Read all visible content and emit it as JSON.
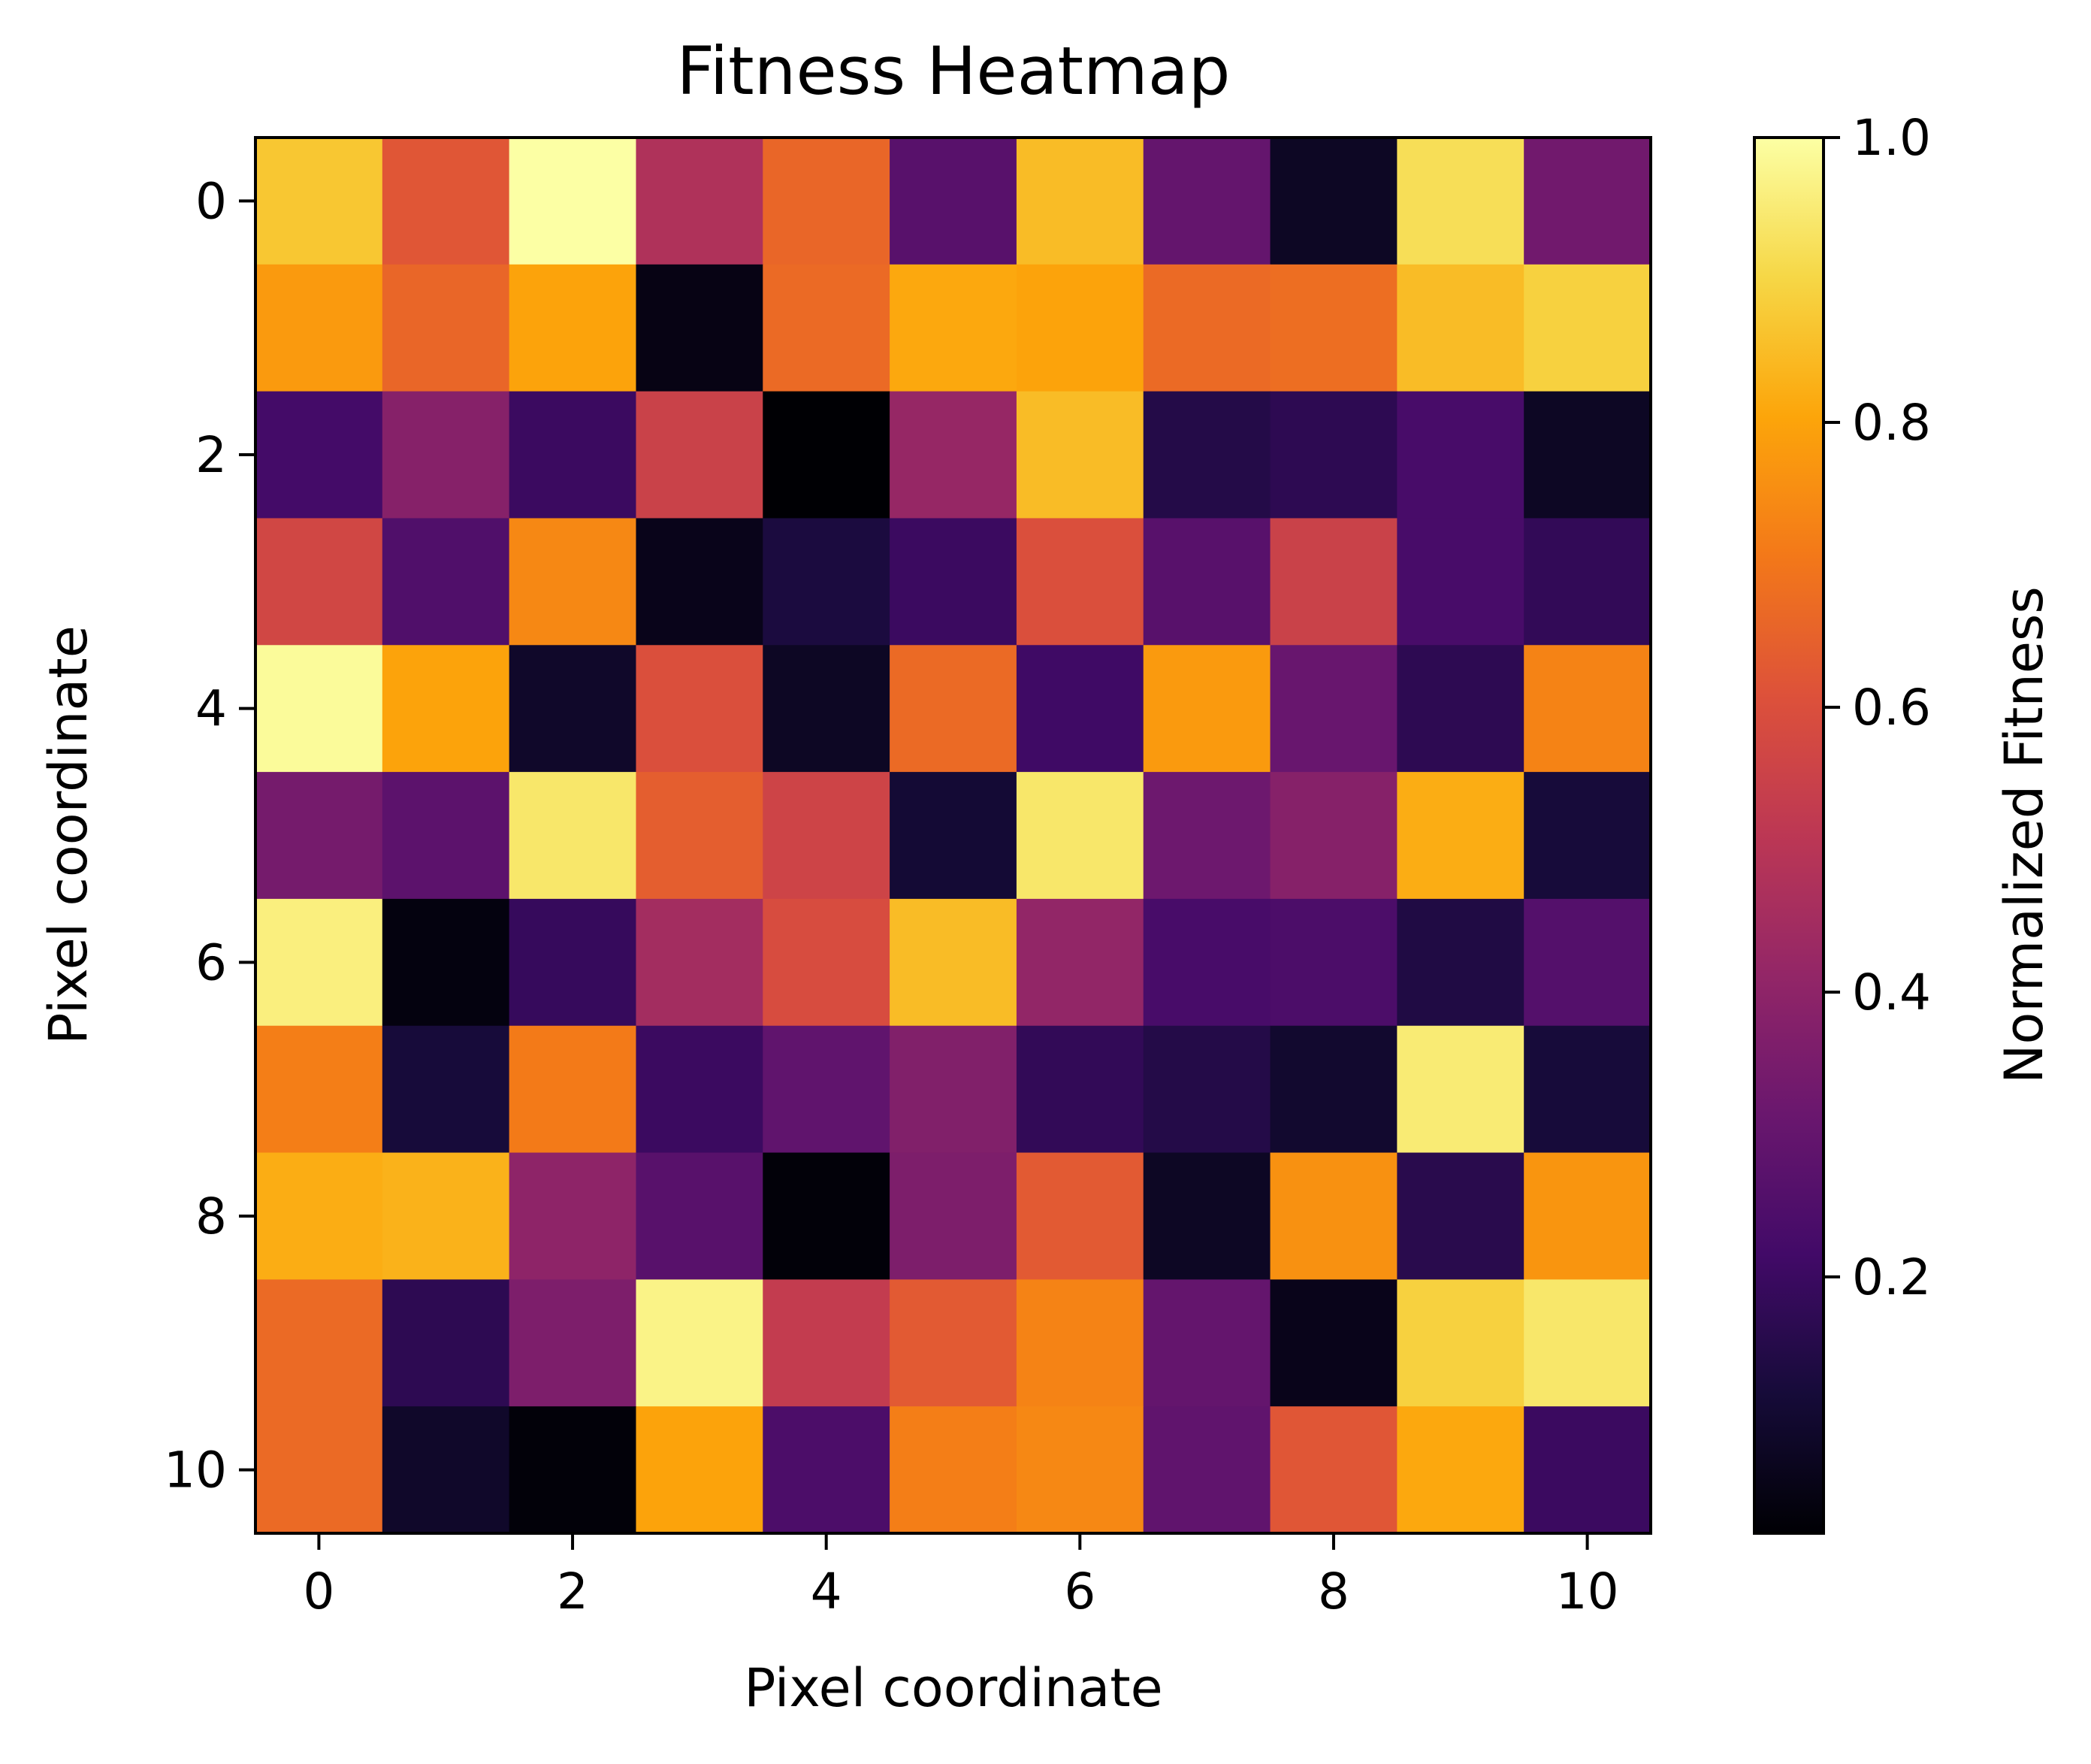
{
  "chart_data": {
    "type": "heatmap",
    "title": "Fitness Heatmap",
    "xlabel": "Pixel coordinate",
    "ylabel": "Pixel coordinate",
    "x_ticks": [
      0,
      2,
      4,
      6,
      8,
      10
    ],
    "y_ticks": [
      0,
      2,
      4,
      6,
      8,
      10
    ],
    "y_inverted": true,
    "colormap": "inferno",
    "colorbar": {
      "label": "Normalized Fitness",
      "range": [
        0.02,
        1.0
      ],
      "ticks": [
        0.2,
        0.4,
        0.6,
        0.8,
        1.0
      ],
      "tick_labels": [
        "0.2",
        "0.4",
        "0.6",
        "0.8",
        "1.0"
      ]
    },
    "values": [
      [
        0.87,
        0.62,
        1.0,
        0.48,
        0.66,
        0.27,
        0.85,
        0.3,
        0.08,
        0.92,
        0.33
      ],
      [
        0.78,
        0.66,
        0.8,
        0.05,
        0.67,
        0.81,
        0.8,
        0.67,
        0.68,
        0.85,
        0.89
      ],
      [
        0.22,
        0.38,
        0.2,
        0.55,
        0.02,
        0.42,
        0.85,
        0.15,
        0.17,
        0.23,
        0.08
      ],
      [
        0.57,
        0.25,
        0.74,
        0.06,
        0.13,
        0.2,
        0.6,
        0.27,
        0.55,
        0.23,
        0.18
      ],
      [
        0.99,
        0.8,
        0.09,
        0.6,
        0.08,
        0.67,
        0.21,
        0.78,
        0.31,
        0.17,
        0.73
      ],
      [
        0.34,
        0.28,
        0.94,
        0.64,
        0.56,
        0.11,
        0.94,
        0.32,
        0.38,
        0.82,
        0.12
      ],
      [
        0.96,
        0.04,
        0.19,
        0.45,
        0.59,
        0.85,
        0.41,
        0.23,
        0.24,
        0.14,
        0.26
      ],
      [
        0.72,
        0.12,
        0.71,
        0.2,
        0.29,
        0.37,
        0.18,
        0.15,
        0.1,
        0.95,
        0.12
      ],
      [
        0.82,
        0.83,
        0.4,
        0.27,
        0.03,
        0.36,
        0.63,
        0.08,
        0.76,
        0.16,
        0.77
      ],
      [
        0.67,
        0.17,
        0.36,
        0.97,
        0.53,
        0.63,
        0.73,
        0.3,
        0.06,
        0.89,
        0.94
      ],
      [
        0.67,
        0.09,
        0.03,
        0.8,
        0.24,
        0.72,
        0.74,
        0.29,
        0.62,
        0.81,
        0.2
      ]
    ]
  }
}
